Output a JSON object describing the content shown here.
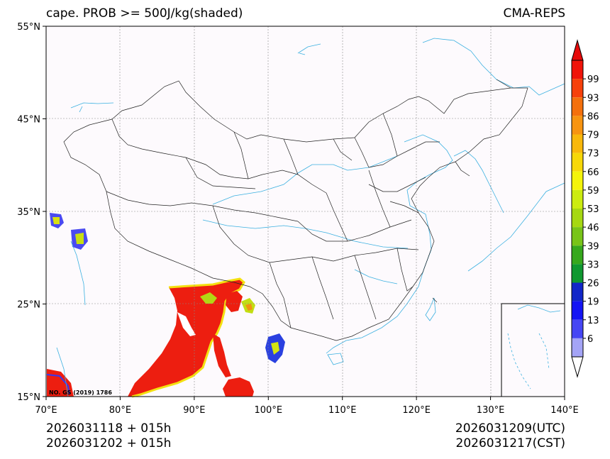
{
  "header": {
    "title": "cape. PROB >= 500J/kg(shaded)",
    "model": "CMA-REPS"
  },
  "map": {
    "lon_range": [
      70,
      140
    ],
    "lat_range": [
      15,
      55
    ],
    "lon_ticks": [
      "70°E",
      "80°E",
      "90°E",
      "100°E",
      "110°E",
      "120°E",
      "130°E",
      "140°E"
    ],
    "lat_ticks": [
      "55°N",
      "45°N",
      "35°N",
      "25°N",
      "15°N"
    ],
    "credit": "NO. GS (2019) 1786",
    "ocean_color": "#fdfafd",
    "border_color": "#222222",
    "river_color": "#3ab0e0"
  },
  "colorbar": {
    "levels": [
      "99",
      "93",
      "86",
      "79",
      "73",
      "66",
      "59",
      "53",
      "46",
      "39",
      "33",
      "26",
      "19",
      "13",
      "6"
    ],
    "colors": [
      "#f0140a",
      "#f6400a",
      "#f4700c",
      "#f79410",
      "#f9b80a",
      "#f7d808",
      "#f4f40a",
      "#ccec10",
      "#a6d812",
      "#78c418",
      "#36a81c",
      "#0f9830",
      "#1226c8",
      "#1414f4",
      "#4646f4",
      "#a4a4f6"
    ],
    "over_color": "#e60a0a",
    "under_color": "#ffffff"
  },
  "footer": {
    "init_utc": "2026031118  +  015h",
    "init_cst": "2026031202  +  015h",
    "valid_utc": "2026031209(UTC)",
    "valid_cst": "2026031217(CST)"
  }
}
